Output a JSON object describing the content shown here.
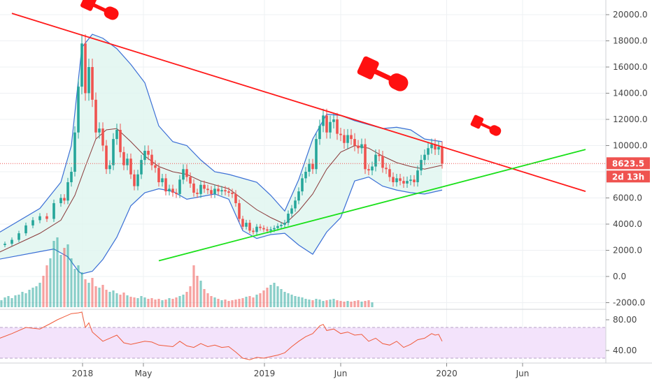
{
  "chart_data": {
    "type": "line",
    "price_scale": {
      "ticks": [
        20000.0,
        18000.0,
        16000.0,
        14000.0,
        12000.0,
        10000.0,
        6000.0,
        4000.0,
        2000.0,
        0.0,
        -2000.0
      ],
      "tick_labels": [
        "20000.0",
        "18000.0",
        "16000.0",
        "14000.0",
        "12000.0",
        "10000.0",
        "6000.0",
        "4000.0",
        "2000.0",
        "0.0",
        "-2000.0"
      ],
      "range": [
        -2300,
        21200
      ]
    },
    "rsi_scale": {
      "ticks": [
        80,
        40
      ],
      "tick_labels": [
        "80.00",
        "40.00"
      ],
      "range": [
        25,
        90
      ],
      "band": [
        30,
        70
      ]
    },
    "x_ticks": [
      {
        "label": "2018",
        "t": 0.2
      },
      {
        "label": "May",
        "t": 17.6
      },
      {
        "label": "2019",
        "t": 52.2
      },
      {
        "label": "Jun",
        "t": 74.0
      },
      {
        "label": "2020",
        "t": 104.3
      },
      {
        "label": "Jun",
        "t": 126.0
      }
    ],
    "last_price": {
      "label": "8623.5",
      "value": 8623.5
    },
    "countdown": {
      "label": "2d 13h"
    },
    "price_series": [
      {
        "t": -24,
        "v": 2400
      },
      {
        "t": -22,
        "v": 2500
      },
      {
        "t": -20,
        "v": 2800
      },
      {
        "t": -18,
        "v": 3300
      },
      {
        "t": -16,
        "v": 3900
      },
      {
        "t": -14,
        "v": 4300
      },
      {
        "t": -12,
        "v": 4600
      },
      {
        "t": -10,
        "v": 4400
      },
      {
        "t": -8,
        "v": 5600
      },
      {
        "t": -6,
        "v": 6000
      },
      {
        "t": -5,
        "v": 5800
      },
      {
        "t": -4,
        "v": 7200
      },
      {
        "t": -3,
        "v": 8000
      },
      {
        "t": -2,
        "v": 11000
      },
      {
        "t": -1,
        "v": 14500
      },
      {
        "t": 0,
        "v": 17800
      },
      {
        "t": 1,
        "v": 14000
      },
      {
        "t": 2,
        "v": 16000
      },
      {
        "t": 3,
        "v": 13500
      },
      {
        "t": 4,
        "v": 11000
      },
      {
        "t": 5,
        "v": 11300
      },
      {
        "t": 6,
        "v": 10000
      },
      {
        "t": 7,
        "v": 8200
      },
      {
        "t": 8,
        "v": 8500
      },
      {
        "t": 9,
        "v": 10500
      },
      {
        "t": 10,
        "v": 11200
      },
      {
        "t": 11,
        "v": 9500
      },
      {
        "t": 12,
        "v": 8500
      },
      {
        "t": 13,
        "v": 9000
      },
      {
        "t": 14,
        "v": 7800
      },
      {
        "t": 15,
        "v": 6900
      },
      {
        "t": 16,
        "v": 7800
      },
      {
        "t": 17,
        "v": 8900
      },
      {
        "t": 18,
        "v": 9600
      },
      {
        "t": 19,
        "v": 9300
      },
      {
        "t": 20,
        "v": 8500
      },
      {
        "t": 21,
        "v": 8300
      },
      {
        "t": 22,
        "v": 7200
      },
      {
        "t": 23,
        "v": 7500
      },
      {
        "t": 24,
        "v": 6500
      },
      {
        "t": 25,
        "v": 6700
      },
      {
        "t": 26,
        "v": 6400
      },
      {
        "t": 27,
        "v": 6300
      },
      {
        "t": 28,
        "v": 7400
      },
      {
        "t": 29,
        "v": 8200
      },
      {
        "t": 30,
        "v": 7600
      },
      {
        "t": 31,
        "v": 7100
      },
      {
        "t": 32,
        "v": 6400
      },
      {
        "t": 33,
        "v": 6300
      },
      {
        "t": 34,
        "v": 7000
      },
      {
        "t": 35,
        "v": 6700
      },
      {
        "t": 36,
        "v": 6600
      },
      {
        "t": 37,
        "v": 6300
      },
      {
        "t": 38,
        "v": 6700
      },
      {
        "t": 39,
        "v": 6500
      },
      {
        "t": 40,
        "v": 6600
      },
      {
        "t": 41,
        "v": 6500
      },
      {
        "t": 42,
        "v": 6400
      },
      {
        "t": 43,
        "v": 6300
      },
      {
        "t": 44,
        "v": 5600
      },
      {
        "t": 45,
        "v": 4400
      },
      {
        "t": 46,
        "v": 3800
      },
      {
        "t": 47,
        "v": 4100
      },
      {
        "t": 48,
        "v": 3500
      },
      {
        "t": 49,
        "v": 3400
      },
      {
        "t": 50,
        "v": 3800
      },
      {
        "t": 51,
        "v": 3700
      },
      {
        "t": 52,
        "v": 3600
      },
      {
        "t": 53,
        "v": 3500
      },
      {
        "t": 54,
        "v": 3600
      },
      {
        "t": 55,
        "v": 3700
      },
      {
        "t": 56,
        "v": 3850
      },
      {
        "t": 57,
        "v": 3950
      },
      {
        "t": 58,
        "v": 4100
      },
      {
        "t": 59,
        "v": 4800
      },
      {
        "t": 60,
        "v": 5200
      },
      {
        "t": 61,
        "v": 5800
      },
      {
        "t": 62,
        "v": 6500
      },
      {
        "t": 63,
        "v": 7500
      },
      {
        "t": 64,
        "v": 8000
      },
      {
        "t": 65,
        "v": 8600
      },
      {
        "t": 66,
        "v": 8200
      },
      {
        "t": 67,
        "v": 10500
      },
      {
        "t": 68,
        "v": 11500
      },
      {
        "t": 69,
        "v": 12300
      },
      {
        "t": 70,
        "v": 11000
      },
      {
        "t": 71,
        "v": 11800
      },
      {
        "t": 72,
        "v": 12000
      },
      {
        "t": 73,
        "v": 10900
      },
      {
        "t": 74,
        "v": 10800
      },
      {
        "t": 75,
        "v": 10200
      },
      {
        "t": 76,
        "v": 10800
      },
      {
        "t": 77,
        "v": 10500
      },
      {
        "t": 78,
        "v": 10000
      },
      {
        "t": 79,
        "v": 9800
      },
      {
        "t": 80,
        "v": 10100
      },
      {
        "t": 81,
        "v": 8200
      },
      {
        "t": 82,
        "v": 8100
      },
      {
        "t": 83,
        "v": 8400
      },
      {
        "t": 84,
        "v": 9300
      },
      {
        "t": 85,
        "v": 9200
      },
      {
        "t": 86,
        "v": 8300
      },
      {
        "t": 87,
        "v": 8200
      },
      {
        "t": 88,
        "v": 7600
      },
      {
        "t": 89,
        "v": 7200
      },
      {
        "t": 90,
        "v": 7500
      },
      {
        "t": 91,
        "v": 7300
      },
      {
        "t": 92,
        "v": 7100
      },
      {
        "t": 93,
        "v": 7300
      },
      {
        "t": 94,
        "v": 7400
      },
      {
        "t": 95,
        "v": 7200
      },
      {
        "t": 96,
        "v": 8100
      },
      {
        "t": 97,
        "v": 8900
      },
      {
        "t": 98,
        "v": 9300
      },
      {
        "t": 99,
        "v": 9800
      },
      {
        "t": 100,
        "v": 10100
      },
      {
        "t": 101,
        "v": 9700
      },
      {
        "t": 102,
        "v": 9900
      },
      {
        "t": 103,
        "v": 8623.5
      }
    ],
    "bollinger": {
      "upper": [
        {
          "t": -24,
          "v": 3300
        },
        {
          "t": -12,
          "v": 5200
        },
        {
          "t": -6,
          "v": 7200
        },
        {
          "t": -3,
          "v": 10000
        },
        {
          "t": 0,
          "v": 17500
        },
        {
          "t": 3,
          "v": 18500
        },
        {
          "t": 6,
          "v": 18200
        },
        {
          "t": 10,
          "v": 17400
        },
        {
          "t": 14,
          "v": 16200
        },
        {
          "t": 18,
          "v": 14800
        },
        {
          "t": 22,
          "v": 11500
        },
        {
          "t": 26,
          "v": 10300
        },
        {
          "t": 30,
          "v": 10000
        },
        {
          "t": 34,
          "v": 8900
        },
        {
          "t": 38,
          "v": 8000
        },
        {
          "t": 42,
          "v": 7800
        },
        {
          "t": 46,
          "v": 7500
        },
        {
          "t": 50,
          "v": 7200
        },
        {
          "t": 54,
          "v": 6200
        },
        {
          "t": 58,
          "v": 5000
        },
        {
          "t": 62,
          "v": 7400
        },
        {
          "t": 66,
          "v": 10500
        },
        {
          "t": 70,
          "v": 12400
        },
        {
          "t": 74,
          "v": 12300
        },
        {
          "t": 78,
          "v": 11900
        },
        {
          "t": 82,
          "v": 11600
        },
        {
          "t": 86,
          "v": 11300
        },
        {
          "t": 90,
          "v": 11400
        },
        {
          "t": 94,
          "v": 11200
        },
        {
          "t": 98,
          "v": 10500
        },
        {
          "t": 103,
          "v": 10300
        }
      ],
      "lower": [
        {
          "t": -24,
          "v": 1300
        },
        {
          "t": -12,
          "v": 1900
        },
        {
          "t": -8,
          "v": 2100
        },
        {
          "t": -4,
          "v": 1500
        },
        {
          "t": -1,
          "v": 400
        },
        {
          "t": 0,
          "v": 200
        },
        {
          "t": 3,
          "v": 400
        },
        {
          "t": 6,
          "v": 1300
        },
        {
          "t": 10,
          "v": 3000
        },
        {
          "t": 14,
          "v": 5400
        },
        {
          "t": 18,
          "v": 6400
        },
        {
          "t": 22,
          "v": 6700
        },
        {
          "t": 26,
          "v": 6500
        },
        {
          "t": 30,
          "v": 5900
        },
        {
          "t": 34,
          "v": 6100
        },
        {
          "t": 38,
          "v": 6300
        },
        {
          "t": 42,
          "v": 5900
        },
        {
          "t": 46,
          "v": 3500
        },
        {
          "t": 50,
          "v": 2900
        },
        {
          "t": 54,
          "v": 3200
        },
        {
          "t": 58,
          "v": 3300
        },
        {
          "t": 62,
          "v": 2400
        },
        {
          "t": 66,
          "v": 1700
        },
        {
          "t": 70,
          "v": 3400
        },
        {
          "t": 74,
          "v": 4500
        },
        {
          "t": 78,
          "v": 7300
        },
        {
          "t": 82,
          "v": 7600
        },
        {
          "t": 86,
          "v": 6900
        },
        {
          "t": 90,
          "v": 6600
        },
        {
          "t": 94,
          "v": 6400
        },
        {
          "t": 98,
          "v": 6300
        },
        {
          "t": 103,
          "v": 6600
        }
      ],
      "middle": [
        {
          "t": -24,
          "v": 1800
        },
        {
          "t": -12,
          "v": 3300
        },
        {
          "t": -6,
          "v": 4300
        },
        {
          "t": -2,
          "v": 6200
        },
        {
          "t": 1,
          "v": 8400
        },
        {
          "t": 4,
          "v": 10500
        },
        {
          "t": 7,
          "v": 11200
        },
        {
          "t": 10,
          "v": 11300
        },
        {
          "t": 14,
          "v": 10300
        },
        {
          "t": 18,
          "v": 9200
        },
        {
          "t": 22,
          "v": 8400
        },
        {
          "t": 26,
          "v": 8000
        },
        {
          "t": 30,
          "v": 7800
        },
        {
          "t": 34,
          "v": 7300
        },
        {
          "t": 38,
          "v": 7000
        },
        {
          "t": 42,
          "v": 6700
        },
        {
          "t": 46,
          "v": 5900
        },
        {
          "t": 50,
          "v": 5100
        },
        {
          "t": 54,
          "v": 4500
        },
        {
          "t": 58,
          "v": 4000
        },
        {
          "t": 62,
          "v": 5000
        },
        {
          "t": 66,
          "v": 6300
        },
        {
          "t": 70,
          "v": 8200
        },
        {
          "t": 74,
          "v": 9500
        },
        {
          "t": 78,
          "v": 10000
        },
        {
          "t": 82,
          "v": 9800
        },
        {
          "t": 86,
          "v": 9200
        },
        {
          "t": 90,
          "v": 8700
        },
        {
          "t": 94,
          "v": 8400
        },
        {
          "t": 98,
          "v": 8200
        },
        {
          "t": 103,
          "v": 8500
        }
      ]
    },
    "volume_relative": [
      0.12,
      0.1,
      0.14,
      0.16,
      0.13,
      0.17,
      0.18,
      0.22,
      0.2,
      0.25,
      0.28,
      0.3,
      0.35,
      0.45,
      0.6,
      0.7,
      0.95,
      1.0,
      0.75,
      0.85,
      0.9,
      0.7,
      0.55,
      0.6,
      0.5,
      0.4,
      0.35,
      0.42,
      0.3,
      0.28,
      0.32,
      0.25,
      0.22,
      0.24,
      0.2,
      0.18,
      0.21,
      0.17,
      0.15,
      0.14,
      0.13,
      0.16,
      0.14,
      0.12,
      0.13,
      0.11,
      0.12,
      0.1,
      0.11,
      0.13,
      0.12,
      0.14,
      0.16,
      0.18,
      0.22,
      0.3,
      0.6,
      0.45,
      0.38,
      0.26,
      0.2,
      0.16,
      0.14,
      0.12,
      0.1,
      0.11,
      0.09,
      0.1,
      0.11,
      0.12,
      0.13,
      0.15,
      0.16,
      0.14,
      0.18,
      0.2,
      0.24,
      0.28,
      0.32,
      0.35,
      0.3,
      0.26,
      0.22,
      0.2,
      0.18,
      0.16,
      0.15,
      0.14,
      0.12,
      0.11,
      0.1,
      0.12,
      0.11,
      0.09,
      0.1,
      0.11,
      0.12,
      0.1,
      0.09,
      0.08,
      0.09,
      0.08,
      0.09,
      0.1,
      0.08,
      0.09,
      0.1,
      0.07
    ],
    "rsi_series": [
      {
        "t": -24,
        "v": 55
      },
      {
        "t": -20,
        "v": 62
      },
      {
        "t": -16,
        "v": 70
      },
      {
        "t": -12,
        "v": 68
      },
      {
        "t": -9,
        "v": 75
      },
      {
        "t": -7,
        "v": 80
      },
      {
        "t": -5,
        "v": 84
      },
      {
        "t": -3,
        "v": 88
      },
      {
        "t": -1,
        "v": 89
      },
      {
        "t": 0,
        "v": 90
      },
      {
        "t": 1,
        "v": 70
      },
      {
        "t": 2,
        "v": 76
      },
      {
        "t": 3,
        "v": 64
      },
      {
        "t": 4,
        "v": 60
      },
      {
        "t": 6,
        "v": 52
      },
      {
        "t": 8,
        "v": 56
      },
      {
        "t": 10,
        "v": 60
      },
      {
        "t": 12,
        "v": 50
      },
      {
        "t": 14,
        "v": 48
      },
      {
        "t": 16,
        "v": 50
      },
      {
        "t": 18,
        "v": 52
      },
      {
        "t": 20,
        "v": 51
      },
      {
        "t": 22,
        "v": 47
      },
      {
        "t": 24,
        "v": 46
      },
      {
        "t": 26,
        "v": 45
      },
      {
        "t": 28,
        "v": 52
      },
      {
        "t": 30,
        "v": 46
      },
      {
        "t": 32,
        "v": 44
      },
      {
        "t": 34,
        "v": 49
      },
      {
        "t": 36,
        "v": 45
      },
      {
        "t": 38,
        "v": 47
      },
      {
        "t": 40,
        "v": 44
      },
      {
        "t": 42,
        "v": 45
      },
      {
        "t": 44,
        "v": 38
      },
      {
        "t": 46,
        "v": 30
      },
      {
        "t": 48,
        "v": 28
      },
      {
        "t": 50,
        "v": 31
      },
      {
        "t": 52,
        "v": 30
      },
      {
        "t": 54,
        "v": 32
      },
      {
        "t": 56,
        "v": 34
      },
      {
        "t": 58,
        "v": 37
      },
      {
        "t": 60,
        "v": 45
      },
      {
        "t": 62,
        "v": 52
      },
      {
        "t": 64,
        "v": 58
      },
      {
        "t": 66,
        "v": 62
      },
      {
        "t": 68,
        "v": 72
      },
      {
        "t": 69,
        "v": 74
      },
      {
        "t": 70,
        "v": 66
      },
      {
        "t": 72,
        "v": 68
      },
      {
        "t": 74,
        "v": 62
      },
      {
        "t": 76,
        "v": 64
      },
      {
        "t": 78,
        "v": 60
      },
      {
        "t": 80,
        "v": 61
      },
      {
        "t": 82,
        "v": 52
      },
      {
        "t": 84,
        "v": 56
      },
      {
        "t": 86,
        "v": 49
      },
      {
        "t": 88,
        "v": 47
      },
      {
        "t": 90,
        "v": 52
      },
      {
        "t": 92,
        "v": 44
      },
      {
        "t": 94,
        "v": 48
      },
      {
        "t": 96,
        "v": 54
      },
      {
        "t": 98,
        "v": 56
      },
      {
        "t": 100,
        "v": 62
      },
      {
        "t": 101,
        "v": 60
      },
      {
        "t": 102,
        "v": 61
      },
      {
        "t": 103,
        "v": 52
      }
    ],
    "trendlines": [
      {
        "name": "resistance",
        "color": "#ff1a1a",
        "from": {
          "t": -20,
          "v": 20100
        },
        "to": {
          "t": 144,
          "v": 6500
        }
      },
      {
        "name": "support",
        "color": "#19e019",
        "from": {
          "t": 22,
          "v": 1200
        },
        "to": {
          "t": 144,
          "v": 9700
        }
      }
    ],
    "annotations": [
      "hammer-mark-1",
      "hammer-mark-2",
      "hammer-mark-3"
    ]
  },
  "colors": {
    "up": "#26a69a",
    "down": "#ef5350",
    "band_fill": "#dff5ef",
    "band_line": "#3b6fd6",
    "middle": "#8a3a3a",
    "rsi_line": "#f05a3a",
    "rsi_fill": "#f3e3fb",
    "hammer": "#ff1010"
  }
}
